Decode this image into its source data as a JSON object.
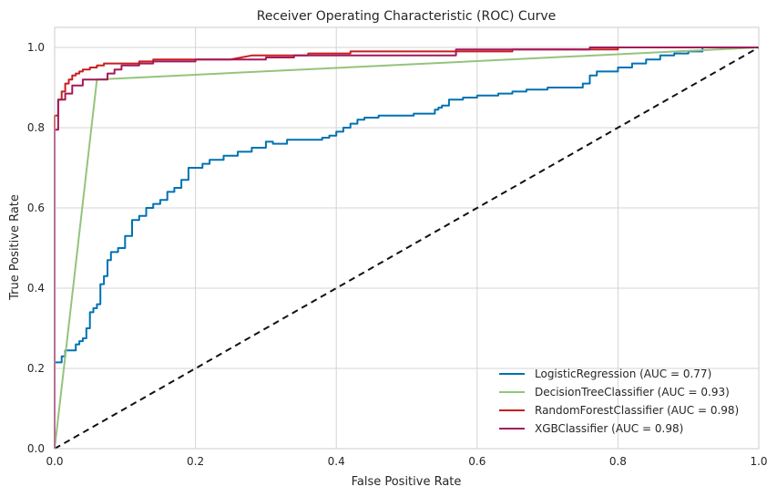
{
  "chart_data": {
    "type": "line",
    "title": "Receiver Operating Characteristic (ROC) Curve",
    "xlabel": "False Positive Rate",
    "ylabel": "True Positive Rate",
    "xlim": [
      0,
      1
    ],
    "ylim": [
      0,
      1.05
    ],
    "x_ticks": [
      "0.0",
      "0.2",
      "0.4",
      "0.6",
      "0.8",
      "1.0"
    ],
    "y_ticks": [
      "0.0",
      "0.2",
      "0.4",
      "0.6",
      "0.8",
      "1.0"
    ],
    "grid": true,
    "legend_position": "lower-right",
    "series": [
      {
        "name": "LogisticRegression (AUC = 0.77)",
        "color": "#0072b2",
        "x": [
          0,
          0,
          0.01,
          0.01,
          0.015,
          0.015,
          0.03,
          0.03,
          0.035,
          0.035,
          0.04,
          0.04,
          0.045,
          0.045,
          0.05,
          0.05,
          0.055,
          0.055,
          0.06,
          0.06,
          0.065,
          0.065,
          0.07,
          0.07,
          0.075,
          0.075,
          0.08,
          0.08,
          0.09,
          0.09,
          0.1,
          0.1,
          0.11,
          0.11,
          0.12,
          0.12,
          0.13,
          0.13,
          0.14,
          0.14,
          0.15,
          0.15,
          0.16,
          0.16,
          0.17,
          0.17,
          0.18,
          0.18,
          0.19,
          0.19,
          0.21,
          0.21,
          0.22,
          0.22,
          0.24,
          0.24,
          0.26,
          0.26,
          0.28,
          0.28,
          0.3,
          0.3,
          0.31,
          0.31,
          0.33,
          0.33,
          0.38,
          0.38,
          0.39,
          0.39,
          0.4,
          0.4,
          0.41,
          0.41,
          0.42,
          0.42,
          0.43,
          0.43,
          0.44,
          0.44,
          0.46,
          0.46,
          0.51,
          0.51,
          0.54,
          0.54,
          0.545,
          0.545,
          0.55,
          0.55,
          0.56,
          0.56,
          0.58,
          0.58,
          0.6,
          0.6,
          0.63,
          0.63,
          0.65,
          0.65,
          0.67,
          0.67,
          0.7,
          0.7,
          0.75,
          0.75,
          0.76,
          0.76,
          0.77,
          0.77,
          0.8,
          0.8,
          0.82,
          0.82,
          0.84,
          0.84,
          0.86,
          0.86,
          0.88,
          0.88,
          0.9,
          0.9,
          0.92,
          0.92,
          0.94,
          0.94,
          0.96,
          0.96,
          0.98,
          0.98,
          0.99,
          0.99,
          1.0
        ],
        "y": [
          0,
          0.215,
          0.215,
          0.23,
          0.23,
          0.245,
          0.245,
          0.26,
          0.26,
          0.268,
          0.268,
          0.275,
          0.275,
          0.3,
          0.3,
          0.34,
          0.34,
          0.35,
          0.35,
          0.36,
          0.36,
          0.41,
          0.41,
          0.43,
          0.43,
          0.47,
          0.47,
          0.49,
          0.49,
          0.5,
          0.5,
          0.53,
          0.53,
          0.57,
          0.57,
          0.58,
          0.58,
          0.6,
          0.6,
          0.61,
          0.61,
          0.62,
          0.62,
          0.64,
          0.64,
          0.65,
          0.65,
          0.67,
          0.67,
          0.7,
          0.7,
          0.71,
          0.71,
          0.72,
          0.72,
          0.73,
          0.73,
          0.74,
          0.74,
          0.75,
          0.75,
          0.765,
          0.765,
          0.76,
          0.76,
          0.77,
          0.77,
          0.775,
          0.775,
          0.78,
          0.78,
          0.79,
          0.79,
          0.8,
          0.8,
          0.81,
          0.81,
          0.82,
          0.82,
          0.825,
          0.825,
          0.83,
          0.83,
          0.835,
          0.835,
          0.845,
          0.845,
          0.85,
          0.85,
          0.855,
          0.855,
          0.87,
          0.87,
          0.875,
          0.875,
          0.88,
          0.88,
          0.885,
          0.885,
          0.89,
          0.89,
          0.895,
          0.895,
          0.9,
          0.9,
          0.91,
          0.91,
          0.93,
          0.93,
          0.94,
          0.94,
          0.95,
          0.95,
          0.96,
          0.96,
          0.97,
          0.97,
          0.98,
          0.98,
          0.985,
          0.985,
          0.99,
          0.99,
          1.0,
          1.0,
          1.0,
          1.0,
          1.0,
          1.0,
          1.0,
          1.0,
          1.0,
          1.0
        ]
      },
      {
        "name": "DecisionTreeClassifier (AUC = 0.93)",
        "color": "#94c47d",
        "x": [
          0,
          0.06,
          1.0
        ],
        "y": [
          0,
          0.92,
          1.0
        ]
      },
      {
        "name": "RandomForestClassifier (AUC = 0.98)",
        "color": "#c81e1e",
        "x": [
          0,
          0,
          0.005,
          0.005,
          0.01,
          0.01,
          0.015,
          0.015,
          0.02,
          0.02,
          0.025,
          0.025,
          0.03,
          0.03,
          0.035,
          0.035,
          0.04,
          0.04,
          0.05,
          0.05,
          0.06,
          0.06,
          0.07,
          0.07,
          0.08,
          0.08,
          0.12,
          0.12,
          0.14,
          0.14,
          0.15,
          0.15,
          0.2,
          0.2,
          0.25,
          0.28,
          0.3,
          0.3,
          0.36,
          0.36,
          0.42,
          0.42,
          0.55,
          0.55,
          0.65,
          0.65,
          0.8,
          0.8,
          1.0
        ],
        "y": [
          0,
          0.83,
          0.83,
          0.87,
          0.87,
          0.89,
          0.89,
          0.91,
          0.91,
          0.92,
          0.92,
          0.93,
          0.93,
          0.935,
          0.935,
          0.94,
          0.94,
          0.945,
          0.945,
          0.95,
          0.95,
          0.955,
          0.955,
          0.96,
          0.96,
          0.96,
          0.96,
          0.965,
          0.965,
          0.97,
          0.97,
          0.97,
          0.97,
          0.97,
          0.97,
          0.98,
          0.98,
          0.98,
          0.98,
          0.985,
          0.985,
          0.99,
          0.99,
          0.99,
          0.99,
          0.995,
          0.995,
          1.0,
          1.0
        ]
      },
      {
        "name": "XGBClassifier (AUC = 0.98)",
        "color": "#a3195b",
        "x": [
          0,
          0,
          0.005,
          0.005,
          0.015,
          0.015,
          0.025,
          0.025,
          0.04,
          0.04,
          0.075,
          0.075,
          0.085,
          0.085,
          0.095,
          0.095,
          0.12,
          0.12,
          0.14,
          0.14,
          0.2,
          0.2,
          0.3,
          0.3,
          0.34,
          0.34,
          0.57,
          0.57,
          0.59,
          0.59,
          0.76,
          0.76,
          1.0
        ],
        "y": [
          0,
          0.795,
          0.795,
          0.87,
          0.87,
          0.885,
          0.885,
          0.905,
          0.905,
          0.92,
          0.92,
          0.935,
          0.935,
          0.945,
          0.945,
          0.955,
          0.955,
          0.96,
          0.96,
          0.965,
          0.965,
          0.97,
          0.97,
          0.975,
          0.975,
          0.98,
          0.98,
          0.995,
          0.995,
          0.995,
          0.995,
          1.0,
          1.0
        ]
      }
    ],
    "reference_line": {
      "x": [
        0,
        1
      ],
      "y": [
        0,
        1
      ],
      "color": "#111111",
      "style": "dashed"
    }
  }
}
